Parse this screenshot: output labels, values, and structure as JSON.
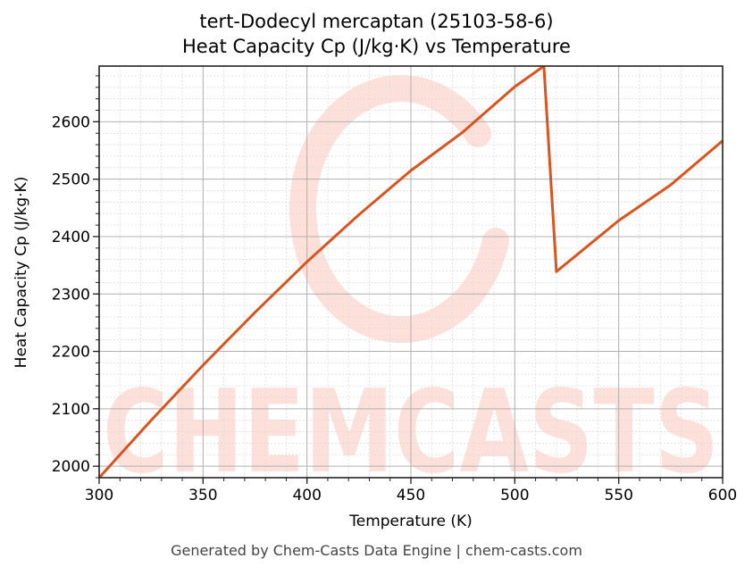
{
  "title_line1": "tert-Dodecyl mercaptan (25103-58-6)",
  "title_line2": "Heat Capacity Cp (J/kg·K) vs Temperature",
  "footer": "Generated by Chem-Casts Data Engine | chem-casts.com",
  "watermark": "CHEMCASTS",
  "colors": {
    "line": "#d9541e",
    "watermark": "#fde0da",
    "major_grid": "#b0b0b0",
    "minor_grid": "#dcdcdc",
    "axis": "#222222"
  },
  "chart_data": {
    "type": "line",
    "title": "tert-Dodecyl mercaptan (25103-58-6)\nHeat Capacity Cp (J/kg·K) vs Temperature",
    "xlabel": "Temperature (K)",
    "ylabel": "Heat Capacity Cp (J/kg·K)",
    "xlim": [
      300,
      600
    ],
    "ylim": [
      1980,
      2697
    ],
    "xticks": [
      300,
      350,
      400,
      450,
      500,
      550,
      600
    ],
    "yticks": [
      2000,
      2100,
      2200,
      2300,
      2400,
      2500,
      2600
    ],
    "x_minor_step": 10,
    "y_minor_step": 20,
    "grid": true,
    "legend": null,
    "series": [
      {
        "name": "Cp",
        "x": [
          300,
          325,
          350,
          375,
          400,
          425,
          450,
          475,
          500,
          514,
          520,
          550,
          575,
          600
        ],
        "values": [
          1980,
          2080,
          2176,
          2268,
          2356,
          2438,
          2515,
          2582,
          2661,
          2697,
          2339,
          2428,
          2490,
          2567
        ]
      }
    ]
  }
}
